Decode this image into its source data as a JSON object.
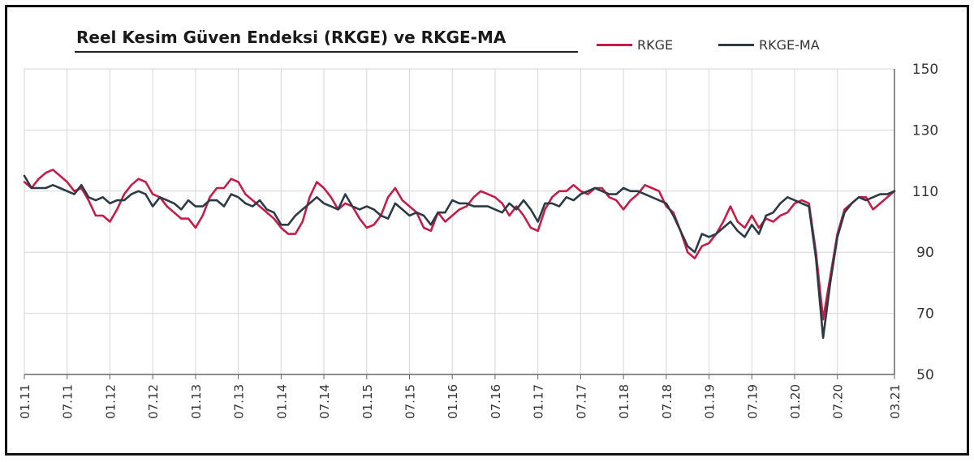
{
  "colors": {
    "rkge": "#c51d48",
    "rkge_ma": "#2c3a45",
    "grid": "#d6d6d6",
    "axis": "#666666",
    "text": "#333333"
  },
  "chart_data": {
    "type": "line",
    "title": "Reel Kesim Güven Endeksi (RKGE) ve RKGE-MA",
    "xlabel": "",
    "ylabel": "",
    "ylim": [
      50,
      150
    ],
    "yticks": [
      150,
      130,
      110,
      90,
      70,
      50
    ],
    "y_axis_side": "right",
    "grid": true,
    "legend_position": "top-right",
    "x_range": [
      "01.11",
      "03.21"
    ],
    "x_tick_labels": [
      "01.11",
      "07.11",
      "01.12",
      "07.12",
      "01.13",
      "07.13",
      "01.14",
      "07.14",
      "01.15",
      "07.15",
      "01.16",
      "07.16",
      "01.17",
      "07.17",
      "01.18",
      "07.18",
      "01.19",
      "07.19",
      "01.20",
      "07.20",
      "03.21"
    ],
    "series": [
      {
        "name": "RKGE",
        "color": "#c51d48",
        "points": [
          [
            "01.11",
            113
          ],
          [
            "02.11",
            111
          ],
          [
            "03.11",
            114
          ],
          [
            "04.11",
            116
          ],
          [
            "05.11",
            117
          ],
          [
            "06.11",
            115
          ],
          [
            "07.11",
            113
          ],
          [
            "08.11",
            110
          ],
          [
            "09.11",
            111
          ],
          [
            "10.11",
            107
          ],
          [
            "11.11",
            102
          ],
          [
            "12.11",
            102
          ],
          [
            "01.12",
            100
          ],
          [
            "02.12",
            104
          ],
          [
            "03.12",
            109
          ],
          [
            "04.12",
            112
          ],
          [
            "05.12",
            114
          ],
          [
            "06.12",
            113
          ],
          [
            "07.12",
            109
          ],
          [
            "08.12",
            108
          ],
          [
            "09.12",
            105
          ],
          [
            "10.12",
            103
          ],
          [
            "11.12",
            101
          ],
          [
            "12.12",
            101
          ],
          [
            "01.13",
            98
          ],
          [
            "02.13",
            102
          ],
          [
            "03.13",
            108
          ],
          [
            "04.13",
            111
          ],
          [
            "05.13",
            111
          ],
          [
            "06.13",
            114
          ],
          [
            "07.13",
            113
          ],
          [
            "08.13",
            109
          ],
          [
            "09.13",
            107
          ],
          [
            "10.13",
            105
          ],
          [
            "11.13",
            103
          ],
          [
            "12.13",
            101
          ],
          [
            "01.14",
            98
          ],
          [
            "02.14",
            96
          ],
          [
            "03.14",
            96
          ],
          [
            "04.14",
            100
          ],
          [
            "05.14",
            108
          ],
          [
            "06.14",
            113
          ],
          [
            "07.14",
            111
          ],
          [
            "08.14",
            108
          ],
          [
            "09.14",
            104
          ],
          [
            "10.14",
            106
          ],
          [
            "11.14",
            105
          ],
          [
            "12.14",
            101
          ],
          [
            "01.15",
            98
          ],
          [
            "02.15",
            99
          ],
          [
            "03.15",
            102
          ],
          [
            "04.15",
            108
          ],
          [
            "05.15",
            111
          ],
          [
            "06.15",
            107
          ],
          [
            "07.15",
            105
          ],
          [
            "08.15",
            103
          ],
          [
            "09.15",
            98
          ],
          [
            "10.15",
            97
          ],
          [
            "11.15",
            103
          ],
          [
            "12.15",
            100
          ],
          [
            "01.16",
            102
          ],
          [
            "02.16",
            104
          ],
          [
            "03.16",
            105
          ],
          [
            "04.16",
            108
          ],
          [
            "05.16",
            110
          ],
          [
            "06.16",
            109
          ],
          [
            "07.16",
            108
          ],
          [
            "08.16",
            106
          ],
          [
            "09.16",
            102
          ],
          [
            "10.16",
            105
          ],
          [
            "11.16",
            102
          ],
          [
            "12.16",
            98
          ],
          [
            "01.17",
            97
          ],
          [
            "02.17",
            104
          ],
          [
            "03.17",
            108
          ],
          [
            "04.17",
            110
          ],
          [
            "05.17",
            110
          ],
          [
            "06.17",
            112
          ],
          [
            "07.17",
            110
          ],
          [
            "08.17",
            109
          ],
          [
            "09.17",
            111
          ],
          [
            "10.17",
            111
          ],
          [
            "11.17",
            108
          ],
          [
            "12.17",
            107
          ],
          [
            "01.18",
            104
          ],
          [
            "02.18",
            107
          ],
          [
            "03.18",
            109
          ],
          [
            "04.18",
            112
          ],
          [
            "05.18",
            111
          ],
          [
            "06.18",
            110
          ],
          [
            "07.18",
            105
          ],
          [
            "08.18",
            103
          ],
          [
            "09.18",
            97
          ],
          [
            "10.18",
            90
          ],
          [
            "11.18",
            88
          ],
          [
            "12.18",
            92
          ],
          [
            "01.19",
            93
          ],
          [
            "02.19",
            96
          ],
          [
            "03.19",
            100
          ],
          [
            "04.19",
            105
          ],
          [
            "05.19",
            100
          ],
          [
            "06.19",
            98
          ],
          [
            "07.19",
            102
          ],
          [
            "08.19",
            98
          ],
          [
            "09.19",
            101
          ],
          [
            "10.19",
            100
          ],
          [
            "11.19",
            102
          ],
          [
            "12.19",
            103
          ],
          [
            "01.20",
            106
          ],
          [
            "02.20",
            107
          ],
          [
            "03.20",
            106
          ],
          [
            "04.20",
            90
          ],
          [
            "05.20",
            68
          ],
          [
            "06.20",
            82
          ],
          [
            "07.20",
            96
          ],
          [
            "08.20",
            104
          ],
          [
            "09.20",
            106
          ],
          [
            "10.20",
            108
          ],
          [
            "11.20",
            108
          ],
          [
            "12.20",
            104
          ],
          [
            "01.21",
            106
          ],
          [
            "02.21",
            108
          ],
          [
            "03.21",
            110
          ]
        ]
      },
      {
        "name": "RKGE-MA",
        "color": "#2c3a45",
        "points": [
          [
            "01.11",
            115
          ],
          [
            "02.11",
            111
          ],
          [
            "03.11",
            111
          ],
          [
            "04.11",
            111
          ],
          [
            "05.11",
            112
          ],
          [
            "06.11",
            111
          ],
          [
            "07.11",
            110
          ],
          [
            "08.11",
            109
          ],
          [
            "09.11",
            112
          ],
          [
            "10.11",
            108
          ],
          [
            "11.11",
            107
          ],
          [
            "12.11",
            108
          ],
          [
            "01.12",
            106
          ],
          [
            "02.12",
            107
          ],
          [
            "03.12",
            107
          ],
          [
            "04.12",
            109
          ],
          [
            "05.12",
            110
          ],
          [
            "06.12",
            109
          ],
          [
            "07.12",
            105
          ],
          [
            "08.12",
            108
          ],
          [
            "09.12",
            107
          ],
          [
            "10.12",
            106
          ],
          [
            "11.12",
            104
          ],
          [
            "12.12",
            107
          ],
          [
            "01.13",
            105
          ],
          [
            "02.13",
            105
          ],
          [
            "03.13",
            107
          ],
          [
            "04.13",
            107
          ],
          [
            "05.13",
            105
          ],
          [
            "06.13",
            109
          ],
          [
            "07.13",
            108
          ],
          [
            "08.13",
            106
          ],
          [
            "09.13",
            105
          ],
          [
            "10.13",
            107
          ],
          [
            "11.13",
            104
          ],
          [
            "12.13",
            103
          ],
          [
            "01.14",
            99
          ],
          [
            "02.14",
            99
          ],
          [
            "03.14",
            102
          ],
          [
            "04.14",
            104
          ],
          [
            "05.14",
            106
          ],
          [
            "06.14",
            108
          ],
          [
            "07.14",
            106
          ],
          [
            "08.14",
            105
          ],
          [
            "09.14",
            104
          ],
          [
            "10.14",
            109
          ],
          [
            "11.14",
            105
          ],
          [
            "12.14",
            104
          ],
          [
            "01.15",
            105
          ],
          [
            "02.15",
            104
          ],
          [
            "03.15",
            102
          ],
          [
            "04.15",
            101
          ],
          [
            "05.15",
            106
          ],
          [
            "06.15",
            104
          ],
          [
            "07.15",
            102
          ],
          [
            "08.15",
            103
          ],
          [
            "09.15",
            102
          ],
          [
            "10.15",
            99
          ],
          [
            "11.15",
            103
          ],
          [
            "12.15",
            103
          ],
          [
            "01.16",
            107
          ],
          [
            "02.16",
            106
          ],
          [
            "03.16",
            106
          ],
          [
            "04.16",
            105
          ],
          [
            "05.16",
            105
          ],
          [
            "06.16",
            105
          ],
          [
            "07.16",
            104
          ],
          [
            "08.16",
            103
          ],
          [
            "09.16",
            106
          ],
          [
            "10.16",
            104
          ],
          [
            "11.16",
            107
          ],
          [
            "12.16",
            104
          ],
          [
            "01.17",
            100
          ],
          [
            "02.17",
            106
          ],
          [
            "03.17",
            106
          ],
          [
            "04.17",
            105
          ],
          [
            "05.17",
            108
          ],
          [
            "06.17",
            107
          ],
          [
            "07.17",
            109
          ],
          [
            "08.17",
            110
          ],
          [
            "09.17",
            111
          ],
          [
            "10.17",
            110
          ],
          [
            "11.17",
            109
          ],
          [
            "12.17",
            109
          ],
          [
            "01.18",
            111
          ],
          [
            "02.18",
            110
          ],
          [
            "03.18",
            110
          ],
          [
            "04.18",
            109
          ],
          [
            "05.18",
            108
          ],
          [
            "06.18",
            107
          ],
          [
            "07.18",
            106
          ],
          [
            "08.18",
            102
          ],
          [
            "09.18",
            97
          ],
          [
            "10.18",
            92
          ],
          [
            "11.18",
            90
          ],
          [
            "12.18",
            96
          ],
          [
            "01.19",
            95
          ],
          [
            "02.19",
            96
          ],
          [
            "03.19",
            98
          ],
          [
            "04.19",
            100
          ],
          [
            "05.19",
            97
          ],
          [
            "06.19",
            95
          ],
          [
            "07.19",
            99
          ],
          [
            "08.19",
            96
          ],
          [
            "09.19",
            102
          ],
          [
            "10.19",
            103
          ],
          [
            "11.19",
            106
          ],
          [
            "12.19",
            108
          ],
          [
            "01.20",
            107
          ],
          [
            "02.20",
            106
          ],
          [
            "03.20",
            105
          ],
          [
            "04.20",
            88
          ],
          [
            "05.20",
            62
          ],
          [
            "06.20",
            80
          ],
          [
            "07.20",
            95
          ],
          [
            "08.20",
            103
          ],
          [
            "09.20",
            106
          ],
          [
            "10.20",
            108
          ],
          [
            "11.20",
            107
          ],
          [
            "12.20",
            108
          ],
          [
            "01.21",
            109
          ],
          [
            "02.21",
            109
          ],
          [
            "03.21",
            110
          ]
        ]
      }
    ]
  }
}
